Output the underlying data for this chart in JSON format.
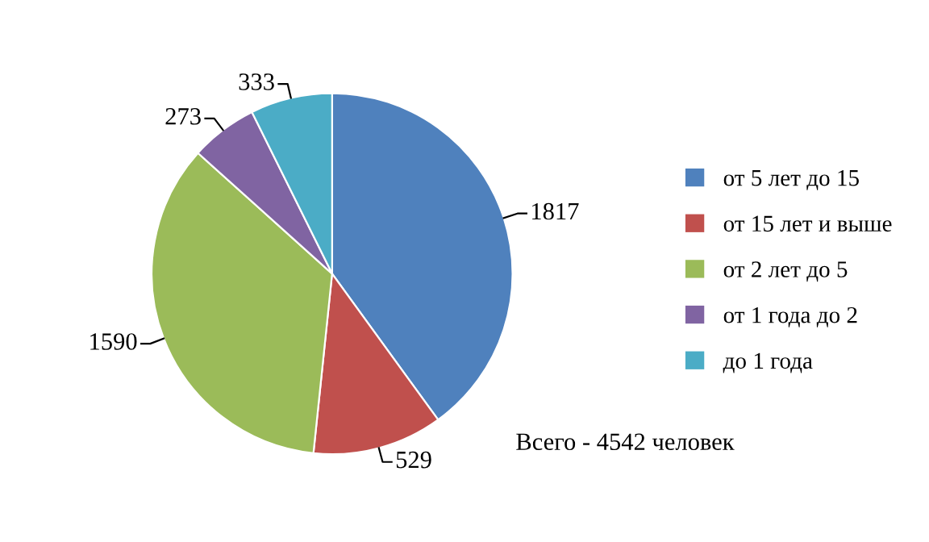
{
  "chart_data": {
    "type": "pie",
    "categories": [
      "от 5 лет до 15",
      "от 15 лет и выше",
      "от 2 лет до 5",
      "от 1 года до 2",
      "до 1 года"
    ],
    "values": [
      1817,
      529,
      1590,
      273,
      333
    ],
    "colors": [
      "#4f81bd",
      "#c0504d",
      "#9bbb59",
      "#8064a2",
      "#4bacc6"
    ],
    "data_labels": true,
    "legend": "right",
    "annotations": [
      "Всего - 4542 человек"
    ]
  }
}
